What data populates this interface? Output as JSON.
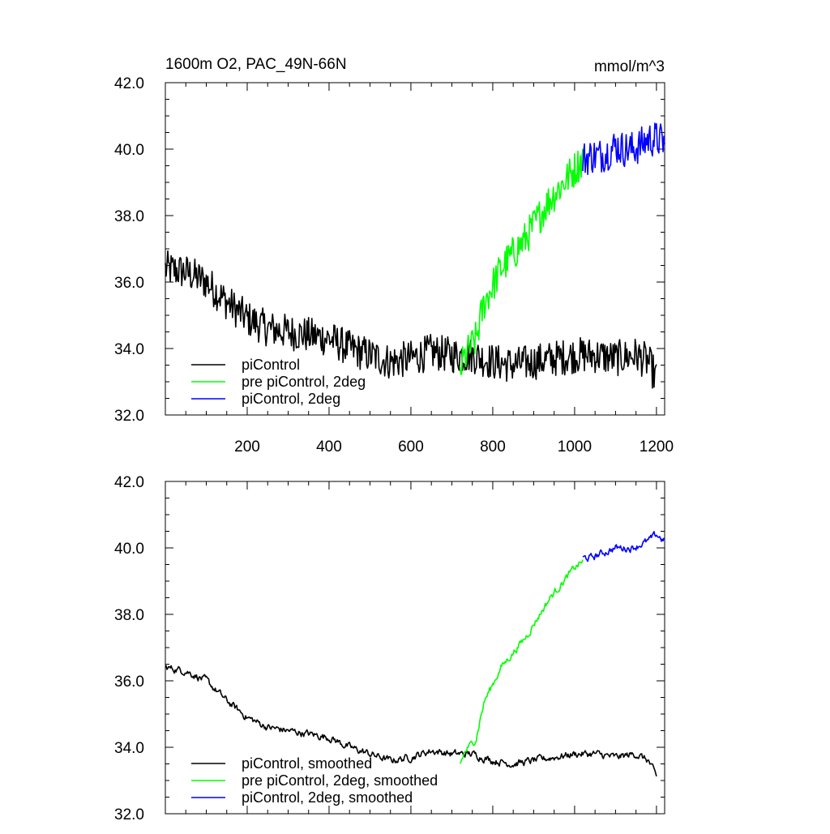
{
  "chart_data": [
    {
      "type": "line",
      "title": "1600m O2, PAC_49N-66N",
      "units_label": "mmol/m^3",
      "xlabel": "",
      "ylabel": "",
      "xlim": [
        0,
        1220
      ],
      "ylim": [
        32.0,
        42.0
      ],
      "x_ticks": [
        200,
        400,
        600,
        800,
        1000,
        1200
      ],
      "x_tick_labels": [
        "200",
        "400",
        "600",
        "800",
        "1000",
        "1200"
      ],
      "y_ticks": [
        32,
        34,
        36,
        38,
        40,
        42
      ],
      "y_tick_labels": [
        "32.0",
        "34.0",
        "36.0",
        "38.0",
        "40.0",
        "42.0"
      ],
      "grid": false,
      "legend_position": "bottom-left",
      "series": [
        {
          "name": "piControl",
          "color": "#000000",
          "x": [
            0,
            50,
            100,
            150,
            200,
            250,
            300,
            350,
            400,
            450,
            500,
            550,
            600,
            650,
            700,
            750,
            800,
            850,
            900,
            950,
            1000,
            1050,
            1100,
            1150,
            1180,
            1200
          ],
          "y": [
            36.4,
            36.3,
            36.0,
            35.4,
            34.9,
            34.6,
            34.5,
            34.4,
            34.3,
            34.0,
            33.8,
            33.6,
            33.7,
            33.9,
            33.8,
            33.8,
            33.6,
            33.5,
            33.6,
            33.7,
            33.8,
            33.8,
            33.7,
            33.8,
            33.6,
            33.1
          ]
        },
        {
          "name": "pre piControl, 2deg",
          "color": "#00ff00",
          "x": [
            720,
            730,
            740,
            750,
            760,
            770,
            780,
            800,
            820,
            840,
            860,
            880,
            900,
            920,
            940,
            960,
            980,
            1000,
            1020
          ],
          "y": [
            33.3,
            33.7,
            33.9,
            34.1,
            34.3,
            34.9,
            35.4,
            35.9,
            36.4,
            36.7,
            37.0,
            37.3,
            37.7,
            38.1,
            38.5,
            38.8,
            39.1,
            39.4,
            39.7
          ]
        },
        {
          "name": "piControl, 2deg",
          "color": "#0000ff",
          "x": [
            1020,
            1040,
            1060,
            1080,
            1100,
            1120,
            1140,
            1160,
            1180,
            1200,
            1220
          ],
          "y": [
            39.7,
            39.8,
            39.8,
            39.9,
            40.1,
            40.0,
            40.0,
            40.1,
            40.3,
            40.3,
            40.2
          ]
        }
      ]
    },
    {
      "type": "line",
      "title": "",
      "units_label": "",
      "xlabel": "",
      "ylabel": "",
      "xlim": [
        0,
        1220
      ],
      "ylim": [
        32.0,
        42.0
      ],
      "x_ticks": [
        200,
        400,
        600,
        800,
        1000,
        1200
      ],
      "x_tick_labels": [],
      "y_ticks": [
        32,
        34,
        36,
        38,
        40,
        42
      ],
      "y_tick_labels": [
        "32.0",
        "34.0",
        "36.0",
        "38.0",
        "40.0",
        "42.0"
      ],
      "grid": false,
      "legend_position": "bottom-left",
      "series": [
        {
          "name": "piControl, smoothed",
          "color": "#000000",
          "x": [
            0,
            50,
            100,
            150,
            200,
            250,
            300,
            350,
            400,
            450,
            500,
            550,
            600,
            650,
            700,
            750,
            800,
            850,
            900,
            950,
            1000,
            1050,
            1100,
            1150,
            1180,
            1200
          ],
          "y": [
            36.4,
            36.3,
            36.0,
            35.4,
            34.9,
            34.6,
            34.5,
            34.4,
            34.3,
            34.0,
            33.8,
            33.6,
            33.7,
            33.9,
            33.8,
            33.8,
            33.6,
            33.5,
            33.6,
            33.7,
            33.8,
            33.8,
            33.7,
            33.8,
            33.6,
            33.1
          ]
        },
        {
          "name": "pre piControl, 2deg, smoothed",
          "color": "#00ff00",
          "x": [
            720,
            730,
            740,
            750,
            760,
            770,
            780,
            800,
            820,
            840,
            860,
            880,
            900,
            920,
            940,
            960,
            980,
            1000,
            1020
          ],
          "y": [
            33.5,
            33.8,
            34.0,
            34.1,
            34.3,
            34.9,
            35.4,
            35.9,
            36.4,
            36.7,
            37.0,
            37.3,
            37.7,
            38.1,
            38.5,
            38.8,
            39.1,
            39.4,
            39.6
          ]
        },
        {
          "name": "piControl, 2deg, smoothed",
          "color": "#0000ff",
          "x": [
            1020,
            1040,
            1060,
            1080,
            1100,
            1120,
            1140,
            1160,
            1180,
            1200,
            1220
          ],
          "y": [
            39.7,
            39.7,
            39.8,
            39.9,
            40.0,
            40.0,
            40.0,
            40.1,
            40.2,
            40.4,
            40.2
          ]
        }
      ]
    }
  ]
}
